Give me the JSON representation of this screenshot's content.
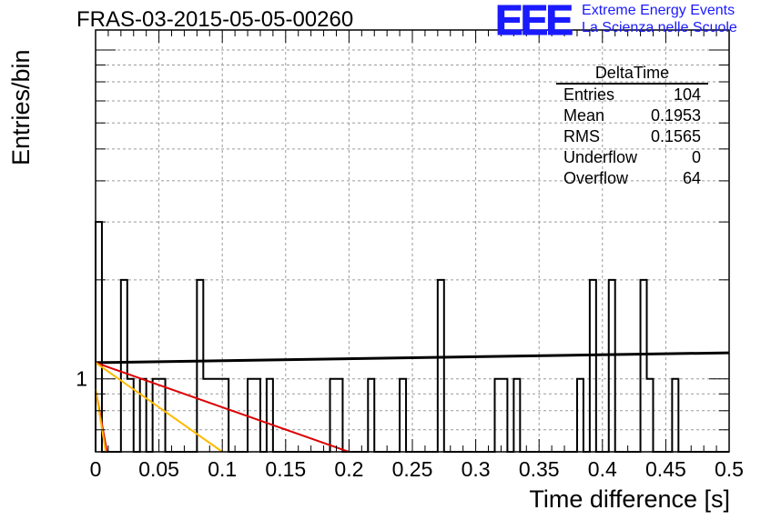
{
  "title": "FRAS-03-2015-05-05-00260",
  "logo": {
    "mark": "EEE",
    "line1": "Extreme Energy Events",
    "line2": "La Scienza nelle Scuole",
    "color": "#1a1aff"
  },
  "stats_box": {
    "title": "DeltaTime",
    "rows": [
      {
        "label": "Entries",
        "value": "104"
      },
      {
        "label": "Mean",
        "value": "0.1953"
      },
      {
        "label": "RMS",
        "value": "0.1565"
      },
      {
        "label": "Underflow",
        "value": "0"
      },
      {
        "label": "Overflow",
        "value": "64"
      }
    ]
  },
  "chart_data": {
    "type": "histogram",
    "title": "FRAS-03-2015-05-05-00260",
    "xlabel": "Time difference [s]",
    "ylabel": "Entries/bin",
    "xlim": [
      0,
      0.5
    ],
    "ylim": [
      0.6,
      11.5
    ],
    "y_scale": "log",
    "grid": true,
    "x_ticks": [
      "0",
      "0.05",
      "0.1",
      "0.15",
      "0.2",
      "0.25",
      "0.3",
      "0.35",
      "0.4",
      "0.45",
      "0.5"
    ],
    "y_ticks": [
      "1"
    ],
    "bin_width": 0.005,
    "bins": [
      {
        "x0": 0.0,
        "count": 3
      },
      {
        "x0": 0.02,
        "count": 2
      },
      {
        "x0": 0.025,
        "count": 1
      },
      {
        "x0": 0.035,
        "count": 1
      },
      {
        "x0": 0.045,
        "count": 1
      },
      {
        "x0": 0.05,
        "count": 1
      },
      {
        "x0": 0.08,
        "count": 2
      },
      {
        "x0": 0.085,
        "count": 1
      },
      {
        "x0": 0.09,
        "count": 1
      },
      {
        "x0": 0.095,
        "count": 1
      },
      {
        "x0": 0.1,
        "count": 1
      },
      {
        "x0": 0.12,
        "count": 1
      },
      {
        "x0": 0.125,
        "count": 1
      },
      {
        "x0": 0.135,
        "count": 1
      },
      {
        "x0": 0.185,
        "count": 1
      },
      {
        "x0": 0.19,
        "count": 1
      },
      {
        "x0": 0.215,
        "count": 1
      },
      {
        "x0": 0.24,
        "count": 1
      },
      {
        "x0": 0.27,
        "count": 2
      },
      {
        "x0": 0.315,
        "count": 1
      },
      {
        "x0": 0.32,
        "count": 1
      },
      {
        "x0": 0.33,
        "count": 1
      },
      {
        "x0": 0.38,
        "count": 1
      },
      {
        "x0": 0.39,
        "count": 2
      },
      {
        "x0": 0.405,
        "count": 2
      },
      {
        "x0": 0.43,
        "count": 2
      },
      {
        "x0": 0.435,
        "count": 1
      },
      {
        "x0": 0.455,
        "count": 1
      }
    ],
    "fit_lines": [
      {
        "color": "#000000",
        "points": [
          [
            0.0,
            1.12
          ],
          [
            0.5,
            1.2
          ]
        ]
      },
      {
        "color": "#dd0000",
        "points": [
          [
            0.0,
            1.12
          ],
          [
            0.2,
            0.6
          ]
        ]
      },
      {
        "color": "#ffbb00",
        "points": [
          [
            0.0,
            1.12
          ],
          [
            0.1,
            0.6
          ]
        ]
      },
      {
        "color": "#dd0000",
        "points": [
          [
            0.0,
            0.93
          ],
          [
            0.009,
            0.6
          ]
        ]
      },
      {
        "color": "#ffbb00",
        "points": [
          [
            0.0,
            0.93
          ],
          [
            0.008,
            0.6
          ]
        ]
      }
    ]
  }
}
